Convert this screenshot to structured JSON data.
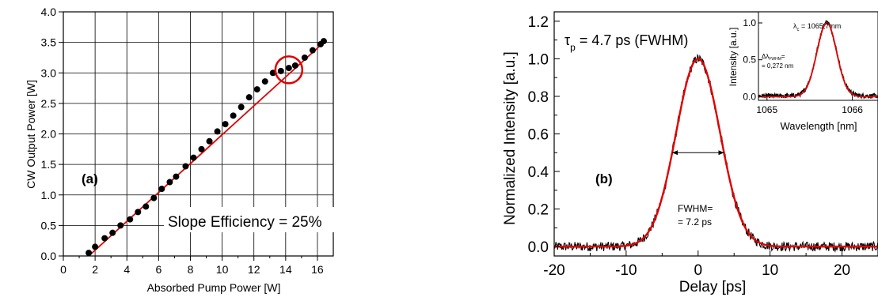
{
  "chart_data": [
    {
      "panel": "(a)",
      "type": "scatter",
      "xlabel": "Absorbed Pump Power [W]",
      "ylabel": "CW  Output Power [W]",
      "xlim": [
        0,
        17
      ],
      "ylim": [
        0,
        4.0
      ],
      "xticks": [
        0,
        2,
        4,
        6,
        8,
        10,
        12,
        14,
        16
      ],
      "yticks": [
        0.0,
        0.5,
        1.0,
        1.5,
        2.0,
        2.5,
        3.0,
        3.5,
        4.0
      ],
      "xtick_labels": [
        "0",
        "2",
        "4",
        "6",
        "8",
        "10",
        "12",
        "14",
        "16"
      ],
      "ytick_labels": [
        "0.0",
        "0.5",
        "1.0",
        "1.5",
        "2.0",
        "2.5",
        "3.0",
        "3.5",
        "4.0"
      ],
      "grid": true,
      "annotation": "Slope Efficiency = 25%",
      "points": {
        "x": [
          1.6,
          2.0,
          2.6,
          3.1,
          3.6,
          4.2,
          4.7,
          5.2,
          5.7,
          6.2,
          6.7,
          7.1,
          7.7,
          8.2,
          8.7,
          9.2,
          9.7,
          10.2,
          10.7,
          11.2,
          11.7,
          12.2,
          12.7,
          13.2,
          13.7,
          14.2,
          14.6,
          15.2,
          15.7,
          16.2,
          16.4
        ],
        "y": [
          0.05,
          0.15,
          0.29,
          0.38,
          0.5,
          0.6,
          0.72,
          0.81,
          0.95,
          1.1,
          1.21,
          1.3,
          1.47,
          1.61,
          1.75,
          1.88,
          2.04,
          2.16,
          2.3,
          2.44,
          2.6,
          2.73,
          2.86,
          3.0,
          3.03,
          3.08,
          3.12,
          3.25,
          3.37,
          3.47,
          3.52
        ]
      },
      "fit_line": {
        "x": [
          1.6,
          16.4
        ],
        "y": [
          0.0,
          3.5
        ]
      },
      "highlight": {
        "x": 14.2,
        "y": 3.05
      },
      "colors": {
        "points": "#000000",
        "line": "#e00000",
        "highlight": "#e00000"
      }
    },
    {
      "panel": "(b)",
      "type": "line",
      "xlabel": "Delay [ps]",
      "ylabel": "Normalized Intensity [a.u.]",
      "xlim": [
        -20,
        25
      ],
      "ylim": [
        -0.05,
        1.25
      ],
      "xticks": [
        -20,
        -10,
        0,
        10,
        20
      ],
      "yticks": [
        0.0,
        0.2,
        0.4,
        0.6,
        0.8,
        1.0,
        1.2
      ],
      "xtick_labels": [
        "-20",
        "-10",
        "0",
        "10",
        "20"
      ],
      "ytick_labels": [
        "0.0",
        "0.2",
        "0.4",
        "0.6",
        "0.8",
        "1.0",
        "1.2"
      ],
      "tau_label": "τ",
      "tau_sub": "p",
      "tau_value": " = 4.7 ps (FWHM)",
      "fwhm_line1": "FWHM=",
      "fwhm_line2": "= 7.2 ps",
      "fwhm_ps": 7.2,
      "gaussian_fit": {
        "amplitude": 1.0,
        "center": 0,
        "fwhm": 7.2
      },
      "colors": {
        "data": "#000000",
        "fit": "#e00000"
      },
      "inset": {
        "type": "line",
        "xlabel": "Wavelength [nm]",
        "ylabel": "Intensity [a.u.]",
        "xlim": [
          1064.9,
          1066.3
        ],
        "ylim": [
          -0.05,
          1.15
        ],
        "xticks": [
          1065,
          1066
        ],
        "xtick_labels": [
          "1065",
          "1066"
        ],
        "yticks": [
          0.0,
          0.5,
          1.0
        ],
        "ytick_labels": [
          "0.0",
          "0.5",
          "1.0"
        ],
        "lambda_label": "λ",
        "lambda_sub": "c",
        "lambda_value": " = 1065,7 nm",
        "dlambda_label": "Δλ",
        "dlambda_sub": "FWHM",
        "dlambda_eq": "=",
        "dlambda_value": "= 0,272 nm",
        "center_nm": 1065.7,
        "fwhm_nm": 0.272
      }
    }
  ]
}
